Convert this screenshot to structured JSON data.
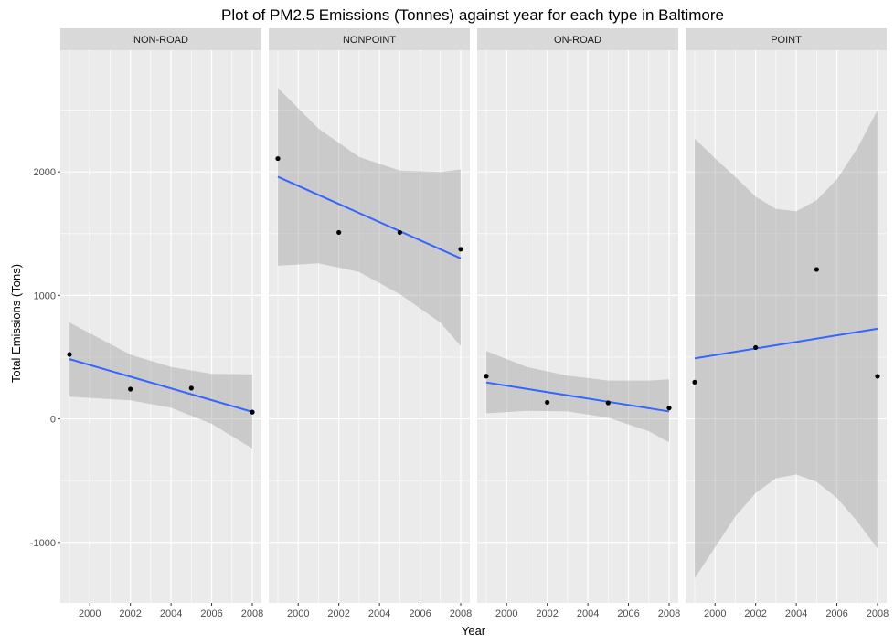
{
  "chart_data": {
    "type": "scatter",
    "title": "Plot of PM2.5 Emissions (Tonnes) against year for each type in Baltimore",
    "xlabel": "Year",
    "ylabel": "Total Emissions (Tons)",
    "xlim": [
      1998.55,
      2008.45
    ],
    "ylim": [
      -1490,
      2985
    ],
    "x_ticks": [
      "2000",
      "2002",
      "2004",
      "2006",
      "2008"
    ],
    "y_ticks": [
      "-1000",
      "0",
      "1000",
      "2000"
    ],
    "x_tick_values": [
      2000,
      2002,
      2004,
      2006,
      2008
    ],
    "y_tick_values": [
      -1000,
      0,
      1000,
      2000
    ],
    "grid": true,
    "colors": {
      "panel_bg": "#ebebeb",
      "strip_bg": "#d9d9d9",
      "grid": "#ffffff",
      "ribbon": "#999999",
      "fit_line": "#3366ff",
      "point": "#000000"
    },
    "panels": [
      {
        "name": "NON-ROAD",
        "points": [
          {
            "x": 1999,
            "y": 522
          },
          {
            "x": 2002,
            "y": 241
          },
          {
            "x": 2005,
            "y": 249
          },
          {
            "x": 2008,
            "y": 55
          }
        ],
        "fit": [
          {
            "x": 1999,
            "y": 484
          },
          {
            "x": 2008,
            "y": 57
          }
        ],
        "ribbon": [
          {
            "x": 1999,
            "lo": 180,
            "hi": 780
          },
          {
            "x": 2002,
            "lo": 150,
            "hi": 520
          },
          {
            "x": 2004,
            "lo": 90,
            "hi": 420
          },
          {
            "x": 2006,
            "lo": -40,
            "hi": 365
          },
          {
            "x": 2008,
            "lo": -240,
            "hi": 360
          }
        ]
      },
      {
        "name": "NONPOINT",
        "points": [
          {
            "x": 1999,
            "y": 2108
          },
          {
            "x": 2002,
            "y": 1510
          },
          {
            "x": 2005,
            "y": 1510
          },
          {
            "x": 2008,
            "y": 1374
          }
        ],
        "fit": [
          {
            "x": 1999,
            "y": 1960
          },
          {
            "x": 2008,
            "y": 1300
          }
        ],
        "ribbon": [
          {
            "x": 1999,
            "lo": 1240,
            "hi": 2680
          },
          {
            "x": 2001,
            "lo": 1260,
            "hi": 2350
          },
          {
            "x": 2003,
            "lo": 1190,
            "hi": 2120
          },
          {
            "x": 2005,
            "lo": 1010,
            "hi": 2010
          },
          {
            "x": 2007,
            "lo": 780,
            "hi": 2000
          },
          {
            "x": 2008,
            "lo": 590,
            "hi": 2020
          }
        ]
      },
      {
        "name": "ON-ROAD",
        "points": [
          {
            "x": 1999,
            "y": 346
          },
          {
            "x": 2002,
            "y": 134
          },
          {
            "x": 2005,
            "y": 130
          },
          {
            "x": 2008,
            "y": 88
          }
        ],
        "fit": [
          {
            "x": 1999,
            "y": 295
          },
          {
            "x": 2008,
            "y": 60
          }
        ],
        "ribbon": [
          {
            "x": 1999,
            "lo": 45,
            "hi": 550
          },
          {
            "x": 2001,
            "lo": 65,
            "hi": 420
          },
          {
            "x": 2003,
            "lo": 60,
            "hi": 350
          },
          {
            "x": 2005,
            "lo": 10,
            "hi": 310
          },
          {
            "x": 2007,
            "lo": -100,
            "hi": 310
          },
          {
            "x": 2008,
            "lo": -190,
            "hi": 320
          }
        ]
      },
      {
        "name": "POINT",
        "points": [
          {
            "x": 1999,
            "y": 297
          },
          {
            "x": 2002,
            "y": 578
          },
          {
            "x": 2005,
            "y": 1210
          },
          {
            "x": 2008,
            "y": 345
          }
        ],
        "fit": [
          {
            "x": 1999,
            "y": 490
          },
          {
            "x": 2008,
            "y": 730
          }
        ],
        "ribbon": [
          {
            "x": 1999,
            "lo": -1290,
            "hi": 2270
          },
          {
            "x": 2000,
            "lo": -1040,
            "hi": 2110
          },
          {
            "x": 2001,
            "lo": -790,
            "hi": 1960
          },
          {
            "x": 2002,
            "lo": -600,
            "hi": 1800
          },
          {
            "x": 2003,
            "lo": -480,
            "hi": 1700
          },
          {
            "x": 2004,
            "lo": -450,
            "hi": 1680
          },
          {
            "x": 2005,
            "lo": -510,
            "hi": 1770
          },
          {
            "x": 2006,
            "lo": -640,
            "hi": 1940
          },
          {
            "x": 2007,
            "lo": -830,
            "hi": 2190
          },
          {
            "x": 2008,
            "lo": -1050,
            "hi": 2500
          }
        ]
      }
    ]
  }
}
